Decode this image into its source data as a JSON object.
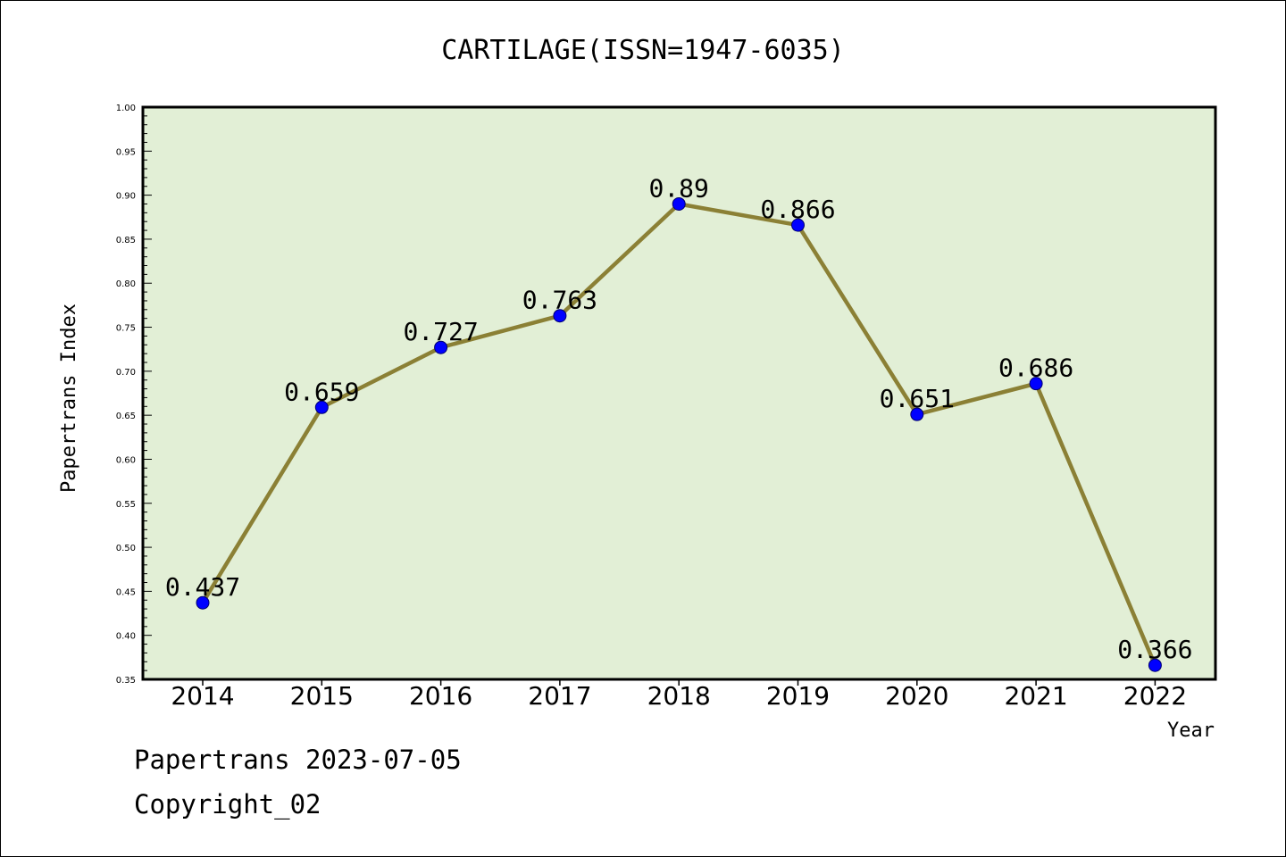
{
  "chart_data": {
    "type": "line",
    "title": "CARTILAGE(ISSN=1947-6035)",
    "xlabel": "Year",
    "ylabel": "Papertrans Index",
    "categories": [
      "2014",
      "2015",
      "2016",
      "2017",
      "2018",
      "2019",
      "2020",
      "2021",
      "2022"
    ],
    "values": [
      0.437,
      0.659,
      0.727,
      0.763,
      0.89,
      0.866,
      0.651,
      0.686,
      0.366
    ],
    "data_labels": [
      "0.437",
      "0.659",
      "0.727",
      "0.763",
      "0.89",
      "0.866",
      "0.651",
      "0.686",
      "0.366"
    ],
    "ylim": [
      0.35,
      1.0
    ],
    "yticks": [
      "0.35",
      "0.40",
      "0.45",
      "0.50",
      "0.55",
      "0.60",
      "0.65",
      "0.70",
      "0.75",
      "0.80",
      "0.85",
      "0.90",
      "0.95",
      "1.00"
    ],
    "grid": false,
    "colors": {
      "plot_background": "#e2efd6",
      "line": "#8b8035",
      "marker": "#0000ff"
    }
  },
  "footer": {
    "line1": "Papertrans 2023-07-05",
    "line2": "Copyright_02"
  }
}
